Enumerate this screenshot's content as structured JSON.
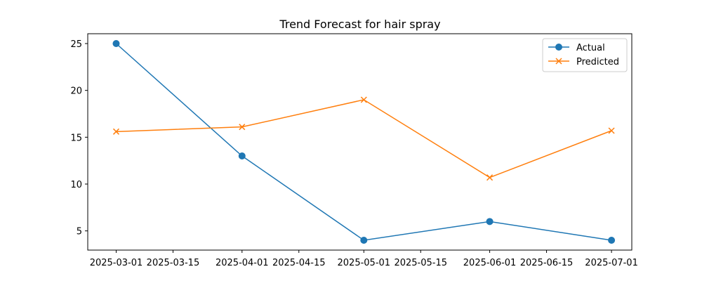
{
  "chart_data": {
    "type": "line",
    "title": "Trend Forecast for hair spray",
    "xlabel": "",
    "ylabel": "",
    "x": [
      "2025-03-01",
      "2025-04-01",
      "2025-05-01",
      "2025-06-01",
      "2025-07-01"
    ],
    "series": [
      {
        "name": "Actual",
        "values": [
          25,
          13,
          4,
          6,
          4
        ],
        "color": "#1f77b4",
        "marker": "circle"
      },
      {
        "name": "Predicted",
        "values": [
          15.6,
          16.1,
          19.0,
          10.7,
          15.7
        ],
        "color": "#ff7f0e",
        "marker": "x"
      }
    ],
    "x_ticks": [
      "2025-03-01",
      "2025-03-15",
      "2025-04-01",
      "2025-04-15",
      "2025-05-01",
      "2025-05-15",
      "2025-06-01",
      "2025-06-15",
      "2025-07-01"
    ],
    "y_ticks": [
      5,
      10,
      15,
      20,
      25
    ],
    "xlim": [
      "2025-02-22",
      "2025-07-06"
    ],
    "ylim": [
      2.95,
      26.05
    ],
    "grid": false,
    "legend_position": "top-right"
  }
}
